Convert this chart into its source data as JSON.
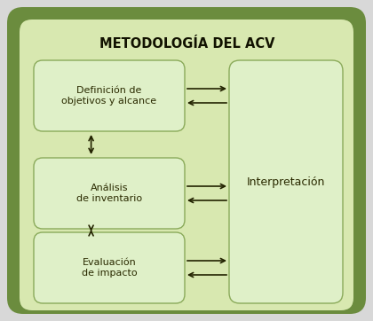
{
  "title": "METODOLOGÍA DEL ACV",
  "box1_text": "Definición de\nobjetivos y alcance",
  "box2_text": "Análisis\nde inventario",
  "box3_text": "Evaluación\nde impacto",
  "box4_text": "Interpretación",
  "outer_bg": "#6b8c3e",
  "inner_bg": "#d8e8b0",
  "box_fill": "#dff0c8",
  "box_edge": "#8aaa5a",
  "title_color": "#111100",
  "text_color": "#2a2a00",
  "arrow_color": "#222200",
  "fig_bg": "#d8d8d8"
}
